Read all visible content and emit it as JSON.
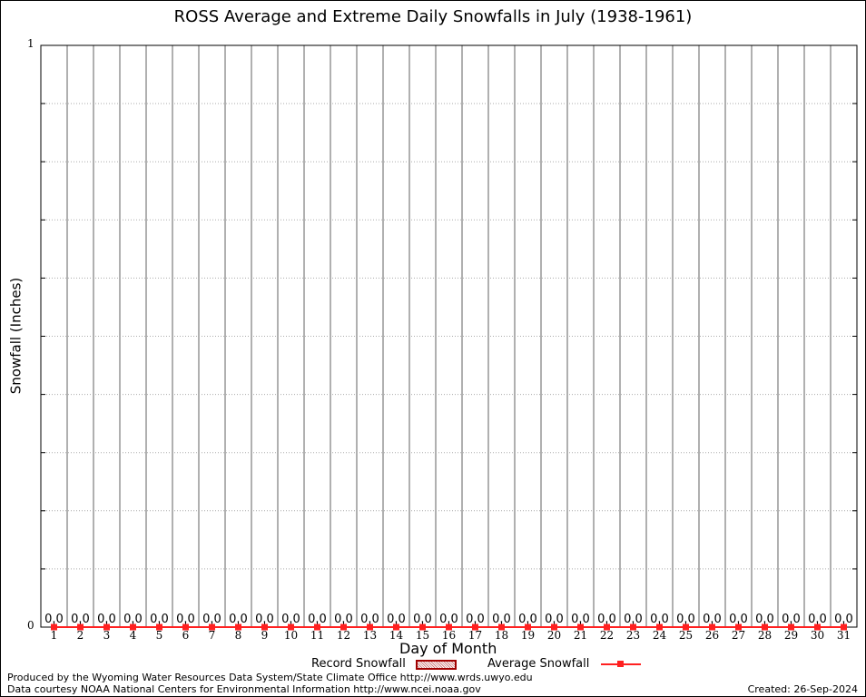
{
  "chart_data": {
    "type": "bar",
    "title": "ROSS Average and Extreme Daily Snowfalls in July (1938-1961)",
    "xlabel": "Day of Month",
    "ylabel": "Snowfall (Inches)",
    "ylim": [
      0,
      1
    ],
    "y_tick_labels": [
      "0",
      "1"
    ],
    "grid": true,
    "categories": [
      "1",
      "2",
      "3",
      "4",
      "5",
      "6",
      "7",
      "8",
      "9",
      "10",
      "11",
      "12",
      "13",
      "14",
      "15",
      "16",
      "17",
      "18",
      "19",
      "20",
      "21",
      "22",
      "23",
      "24",
      "25",
      "26",
      "27",
      "28",
      "29",
      "30",
      "31"
    ],
    "series": [
      {
        "name": "Record Snowfall",
        "type": "bar",
        "color": "#a00000",
        "values": [
          0,
          0,
          0,
          0,
          0,
          0,
          0,
          0,
          0,
          0,
          0,
          0,
          0,
          0,
          0,
          0,
          0,
          0,
          0,
          0,
          0,
          0,
          0,
          0,
          0,
          0,
          0,
          0,
          0,
          0,
          0
        ]
      },
      {
        "name": "Average Snowfall",
        "type": "line",
        "color": "#ff2020",
        "values": [
          0,
          0,
          0,
          0,
          0,
          0,
          0,
          0,
          0,
          0,
          0,
          0,
          0,
          0,
          0,
          0,
          0,
          0,
          0,
          0,
          0,
          0,
          0,
          0,
          0,
          0,
          0,
          0,
          0,
          0,
          0
        ]
      }
    ],
    "data_labels": [
      "0.0",
      "0.0",
      "0.0",
      "0.0",
      "0.0",
      "0.0",
      "0.0",
      "0.0",
      "0.0",
      "0.0",
      "0.0",
      "0.0",
      "0.0",
      "0.0",
      "0.0",
      "0.0",
      "0.0",
      "0.0",
      "0.0",
      "0.0",
      "0.0",
      "0.0",
      "0.0",
      "0.0",
      "0.0",
      "0.0",
      "0.0",
      "0.0",
      "0.0",
      "0.0",
      "0.0"
    ],
    "legend": {
      "placement": "bottom",
      "entries": [
        "Record Snowfall",
        "Average Snowfall"
      ]
    }
  },
  "footer": {
    "produced_by": "Produced by the Wyoming Water Resources Data System/State Climate Office http://www.wrds.uwyo.edu",
    "data_courtesy": "Data courtesy NOAA National Centers for Environmental Information http://www.ncei.noaa.gov",
    "created": "Created: 26-Sep-2024"
  }
}
